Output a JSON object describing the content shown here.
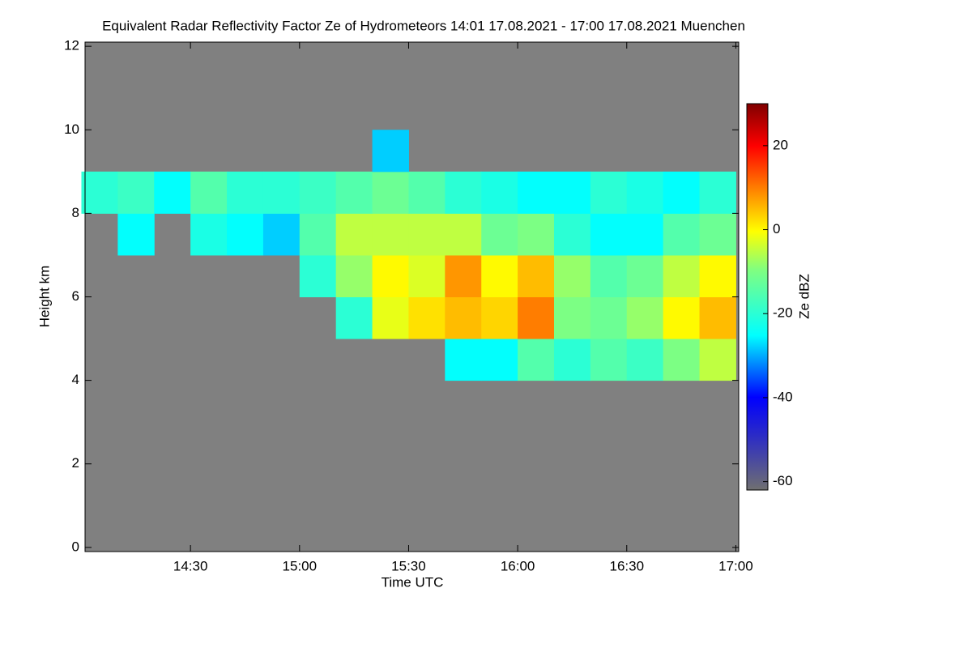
{
  "chart_data": {
    "type": "heatmap",
    "title": "Equivalent Radar Reflectivity Factor Ze of Hydrometeors   14:01 17.08.2021 - 17:00 17.08.2021 Muenchen",
    "xlabel": "Time UTC",
    "ylabel": "Height km",
    "colorbar_label": "Ze dBZ",
    "xlim": [
      14.0167,
      17.0133
    ],
    "xticks": [
      {
        "value": 14.5,
        "label": "14:30"
      },
      {
        "value": 15,
        "label": "15:00"
      },
      {
        "value": 15.5,
        "label": "15:30"
      },
      {
        "value": 16,
        "label": "16:00"
      },
      {
        "value": 16.5,
        "label": "16:30"
      },
      {
        "value": 17,
        "label": "17:00"
      }
    ],
    "ylim": [
      -0.1,
      12.1
    ],
    "yticks": [
      0,
      2,
      4,
      6,
      8,
      10,
      12
    ],
    "zlim": [
      -62,
      30
    ],
    "zticks": [
      -60,
      -40,
      -20,
      0,
      20
    ],
    "x": [
      14.0833,
      14.25,
      14.4167,
      14.5833,
      14.75,
      14.9167,
      15.0833,
      15.25,
      15.4167,
      15.5833,
      15.75,
      15.9167,
      16.0833,
      16.25,
      16.4167,
      16.5833,
      16.75,
      16.9167
    ],
    "y": [
      4.5,
      5.5,
      6.5,
      7.5,
      8.5,
      9.5
    ],
    "z": [
      [
        null,
        null,
        null,
        null,
        null,
        null,
        null,
        null,
        null,
        null,
        -25,
        -25,
        -15,
        -20,
        -15,
        -18,
        -10,
        -5
      ],
      [
        null,
        null,
        null,
        null,
        null,
        null,
        null,
        -20,
        -2,
        2,
        5,
        3,
        10,
        -10,
        -12,
        -8,
        0,
        5
      ],
      [
        null,
        null,
        null,
        null,
        null,
        null,
        -20,
        -8,
        0,
        -3,
        8,
        0,
        5,
        -8,
        -15,
        -12,
        -5,
        0
      ],
      [
        null,
        -25,
        null,
        -22,
        -25,
        -28,
        -15,
        -5,
        -5,
        -5,
        -5,
        -12,
        -10,
        -20,
        -25,
        -25,
        -15,
        -12
      ],
      [
        -20,
        -18,
        -25,
        -15,
        -20,
        -20,
        -18,
        -15,
        -12,
        -15,
        -20,
        -22,
        -25,
        -25,
        -20,
        -22,
        -25,
        -20
      ],
      [
        null,
        null,
        null,
        null,
        null,
        null,
        null,
        null,
        -28,
        null,
        null,
        null,
        null,
        null,
        null,
        null,
        null,
        null
      ]
    ]
  }
}
